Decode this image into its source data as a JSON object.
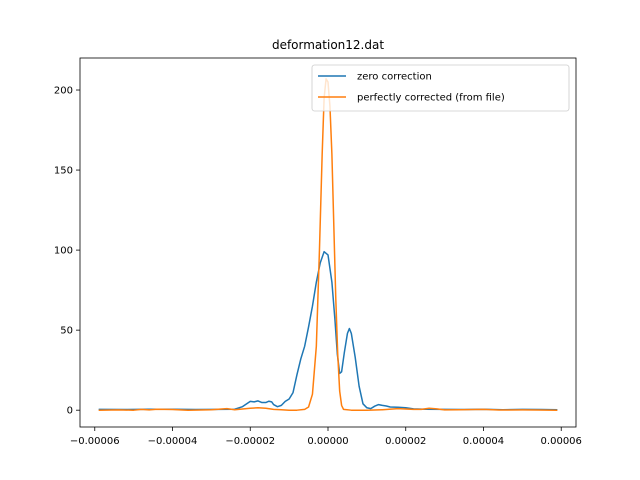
{
  "chart_data": {
    "type": "line",
    "title": "deformation12.dat",
    "xlabel": "",
    "ylabel": "",
    "xlim": [
      -6.38e-05,
      6.38e-05
    ],
    "ylim": [
      -10.5,
      220
    ],
    "xticks": [
      -6e-05,
      -4e-05,
      -2e-05,
      0.0,
      2e-05,
      4e-05,
      6e-05
    ],
    "xtick_labels": [
      "−0.00006",
      "−0.00004",
      "−0.00002",
      "0.00000",
      "0.00002",
      "0.00004",
      "0.00006"
    ],
    "yticks": [
      0,
      50,
      100,
      150,
      200
    ],
    "ytick_labels": [
      "0",
      "50",
      "100",
      "150",
      "200"
    ],
    "grid": false,
    "legend_position": "top-right",
    "series": [
      {
        "name": "zero correction",
        "color": "#1f77b4",
        "points": [
          [
            -5.9e-05,
            0.5
          ],
          [
            -5.2e-05,
            0.4
          ],
          [
            -4.6e-05,
            0.6
          ],
          [
            -4e-05,
            0.6
          ],
          [
            -3.4e-05,
            0.4
          ],
          [
            -2.8e-05,
            0.5
          ],
          [
            -2.4e-05,
            0.6
          ],
          [
            -2.2e-05,
            2.2
          ],
          [
            -2e-05,
            5.5
          ],
          [
            -1.9e-05,
            5.2
          ],
          [
            -1.8e-05,
            5.8
          ],
          [
            -1.7e-05,
            4.8
          ],
          [
            -1.6e-05,
            4.8
          ],
          [
            -1.52e-05,
            5.6
          ],
          [
            -1.45e-05,
            5.2
          ],
          [
            -1.4e-05,
            3.5
          ],
          [
            -1.3e-05,
            2.2
          ],
          [
            -1.2e-05,
            3.0
          ],
          [
            -1.1e-05,
            5.5
          ],
          [
            -1e-05,
            7.0
          ],
          [
            -9e-06,
            11.0
          ],
          [
            -8e-06,
            22.0
          ],
          [
            -7e-06,
            32.0
          ],
          [
            -6e-06,
            40.0
          ],
          [
            -5e-06,
            52.0
          ],
          [
            -4e-06,
            65.0
          ],
          [
            -3e-06,
            80.0
          ],
          [
            -2e-06,
            92.0
          ],
          [
            -1e-06,
            99.0
          ],
          [
            0.0,
            97.0
          ],
          [
            1e-06,
            80.0
          ],
          [
            1.8e-06,
            56.0
          ],
          [
            2.4e-06,
            35.0
          ],
          [
            3e-06,
            23.0
          ],
          [
            3.5e-06,
            24.0
          ],
          [
            4.2e-06,
            36.0
          ],
          [
            5e-06,
            48.0
          ],
          [
            5.5e-06,
            51.0
          ],
          [
            6e-06,
            48.0
          ],
          [
            7e-06,
            33.0
          ],
          [
            8e-06,
            15.0
          ],
          [
            9e-06,
            4.0
          ],
          [
            1e-05,
            1.5
          ],
          [
            1.1e-05,
            1.0
          ],
          [
            1.2e-05,
            2.5
          ],
          [
            1.3e-05,
            3.5
          ],
          [
            1.4e-05,
            3.0
          ],
          [
            1.5e-05,
            2.6
          ],
          [
            1.6e-05,
            2.0
          ],
          [
            1.8e-05,
            1.8
          ],
          [
            2e-05,
            1.5
          ],
          [
            2.2e-05,
            0.8
          ],
          [
            2.5e-05,
            0.6
          ],
          [
            3e-05,
            0.5
          ],
          [
            3.5e-05,
            0.4
          ],
          [
            4e-05,
            0.6
          ],
          [
            4.5e-05,
            0.3
          ],
          [
            5e-05,
            0.5
          ],
          [
            5.5e-05,
            0.4
          ],
          [
            5.9e-05,
            0.3
          ]
        ]
      },
      {
        "name": "perfectly corrected (from file)",
        "color": "#ff7f0e",
        "points": [
          [
            -5.9e-05,
            0.0
          ],
          [
            -5.4e-05,
            0.2
          ],
          [
            -5e-05,
            0.0
          ],
          [
            -4.8e-05,
            0.5
          ],
          [
            -4.6e-05,
            0.2
          ],
          [
            -4.4e-05,
            0.6
          ],
          [
            -4e-05,
            0.4
          ],
          [
            -3.6e-05,
            0.0
          ],
          [
            -3e-05,
            0.3
          ],
          [
            -2.6e-05,
            1.0
          ],
          [
            -2.4e-05,
            0.3
          ],
          [
            -2e-05,
            1.2
          ],
          [
            -1.8e-05,
            1.5
          ],
          [
            -1.6e-05,
            1.2
          ],
          [
            -1.4e-05,
            0.5
          ],
          [
            -1.2e-05,
            0.3
          ],
          [
            -1e-05,
            0.0
          ],
          [
            -8e-06,
            0.0
          ],
          [
            -6e-06,
            0.5
          ],
          [
            -5e-06,
            2.0
          ],
          [
            -4e-06,
            10.0
          ],
          [
            -3e-06,
            40.0
          ],
          [
            -2.2e-06,
            100.0
          ],
          [
            -1.5e-06,
            160.0
          ],
          [
            -1e-06,
            195.0
          ],
          [
            -5e-07,
            207.0
          ],
          [
            0.0,
            205.0
          ],
          [
            5e-07,
            190.0
          ],
          [
            1e-06,
            160.0
          ],
          [
            1.5e-06,
            115.0
          ],
          [
            2e-06,
            70.0
          ],
          [
            2.5e-06,
            35.0
          ],
          [
            3e-06,
            12.0
          ],
          [
            3.5e-06,
            3.0
          ],
          [
            4e-06,
            0.5
          ],
          [
            6e-06,
            0.0
          ],
          [
            1e-05,
            0.0
          ],
          [
            1.4e-05,
            0.3
          ],
          [
            1.8e-05,
            1.0
          ],
          [
            2.2e-05,
            0.5
          ],
          [
            2.4e-05,
            0.5
          ],
          [
            2.6e-05,
            1.2
          ],
          [
            2.8e-05,
            0.8
          ],
          [
            3e-05,
            0.2
          ],
          [
            3.4e-05,
            0.3
          ],
          [
            4e-05,
            0.5
          ],
          [
            4.4e-05,
            0.1
          ],
          [
            5e-05,
            0.2
          ],
          [
            5.4e-05,
            0.1
          ],
          [
            5.9e-05,
            0.0
          ]
        ]
      }
    ]
  }
}
